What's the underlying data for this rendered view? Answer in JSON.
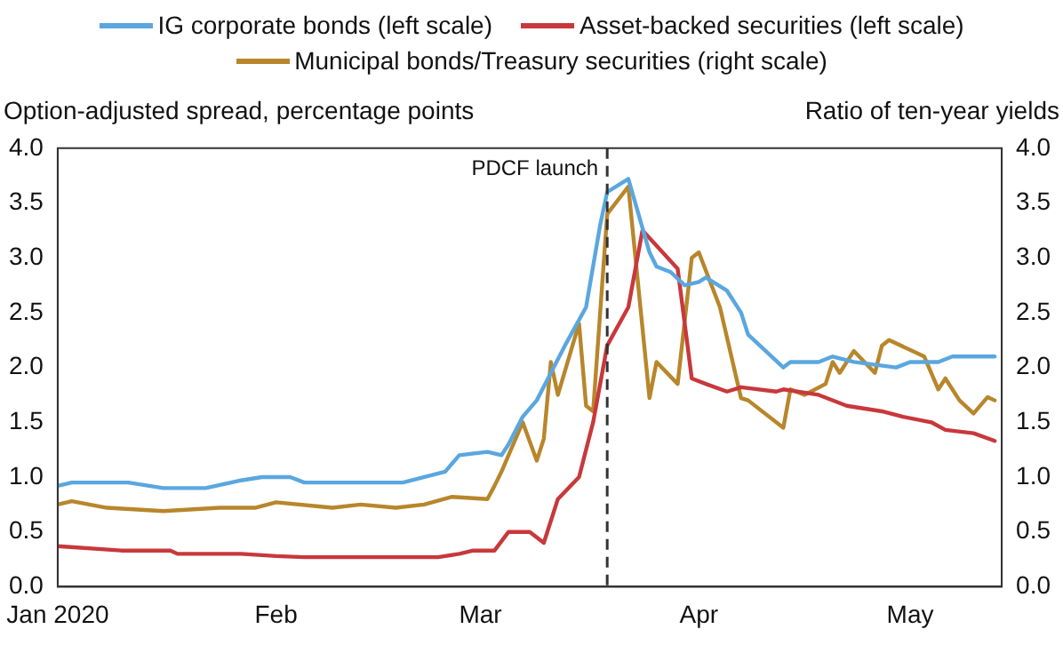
{
  "chart_data": {
    "type": "line",
    "ylabel": "Option-adjusted spread, percentage points",
    "y2label": "Ratio of ten-year yields",
    "xlim": [
      "2020-01-01",
      "2020-05-14"
    ],
    "xticks": [
      {
        "value": "2020-01-01",
        "label": "Jan 2020"
      },
      {
        "value": "2020-02-01",
        "label": "Feb"
      },
      {
        "value": "2020-03-01",
        "label": "Mar"
      },
      {
        "value": "2020-04-01",
        "label": "Apr"
      },
      {
        "value": "2020-05-01",
        "label": "May"
      }
    ],
    "ylim": [
      0,
      4
    ],
    "yticks": [
      {
        "value": 0,
        "label": "0.0"
      },
      0.5,
      {
        "value": 1,
        "label": "1.0"
      },
      1.5,
      {
        "value": 2,
        "label": "2.0"
      },
      2.5,
      {
        "value": 3,
        "label": "3.0"
      },
      3.5,
      {
        "value": 4,
        "label": "4.0"
      }
    ],
    "y2lim": [
      0,
      4
    ],
    "y2ticks": [
      {
        "value": 0,
        "label": "0.0"
      },
      0.5,
      {
        "value": 1,
        "label": "1.0"
      },
      1.5,
      {
        "value": 2,
        "label": "2.0"
      },
      2.5,
      {
        "value": 3,
        "label": "3.0"
      },
      3.5,
      {
        "value": 4,
        "label": "4.0"
      }
    ],
    "grid": false,
    "legend": "top",
    "marker": "none",
    "ref_lines": [
      {
        "axis": "x",
        "value": "2020-03-19",
        "label": "PDCF launch",
        "line_style": "dashed",
        "color": "#333333"
      }
    ],
    "series": [
      {
        "name": "IG corporate bonds (left scale)",
        "color": "#5aa7e0",
        "x": [
          "2020-01-01",
          "2020-01-03",
          "2020-01-11",
          "2020-01-13",
          "2020-01-16",
          "2020-01-22",
          "2020-01-27",
          "2020-01-30",
          "2020-02-03",
          "2020-02-05",
          "2020-02-19",
          "2020-02-25",
          "2020-02-27",
          "2020-03-02",
          "2020-03-04",
          "2020-03-05",
          "2020-03-07",
          "2020-03-09",
          "2020-03-11",
          "2020-03-13",
          "2020-03-16",
          "2020-03-18",
          "2020-03-19",
          "2020-03-22",
          "2020-03-25",
          "2020-03-26",
          "2020-03-28",
          "2020-03-30",
          "2020-04-01",
          "2020-04-02",
          "2020-04-05",
          "2020-04-07",
          "2020-04-08",
          "2020-04-13",
          "2020-04-14",
          "2020-04-18",
          "2020-04-20",
          "2020-04-23",
          "2020-04-29",
          "2020-05-01",
          "2020-05-05",
          "2020-05-07",
          "2020-05-13"
        ],
        "values": [
          0.92,
          0.95,
          0.95,
          0.93,
          0.9,
          0.9,
          0.97,
          1.0,
          1.0,
          0.95,
          0.95,
          1.05,
          1.2,
          1.23,
          1.2,
          1.3,
          1.55,
          1.7,
          1.95,
          2.2,
          2.55,
          3.3,
          3.6,
          3.72,
          3.05,
          2.92,
          2.87,
          2.75,
          2.78,
          2.82,
          2.7,
          2.5,
          2.3,
          2.0,
          2.05,
          2.05,
          2.1,
          2.05,
          2.0,
          2.05,
          2.05,
          2.1,
          2.1
        ]
      },
      {
        "name": "Asset-backed securities (left scale)",
        "color": "#c8383c",
        "x": [
          "2020-01-01",
          "2020-01-10",
          "2020-01-17",
          "2020-01-18",
          "2020-01-27",
          "2020-02-01",
          "2020-02-05",
          "2020-02-24",
          "2020-02-27",
          "2020-02-29",
          "2020-03-03",
          "2020-03-05",
          "2020-03-08",
          "2020-03-10",
          "2020-03-12",
          "2020-03-15",
          "2020-03-17",
          "2020-03-19",
          "2020-03-22",
          "2020-03-24",
          "2020-03-29",
          "2020-03-31",
          "2020-04-02",
          "2020-04-05",
          "2020-04-07",
          "2020-04-12",
          "2020-04-13",
          "2020-04-18",
          "2020-04-22",
          "2020-04-27",
          "2020-04-30",
          "2020-05-04",
          "2020-05-06",
          "2020-05-10",
          "2020-05-13"
        ],
        "values": [
          0.37,
          0.33,
          0.33,
          0.3,
          0.3,
          0.28,
          0.27,
          0.27,
          0.3,
          0.33,
          0.33,
          0.5,
          0.5,
          0.4,
          0.8,
          1.0,
          1.5,
          2.2,
          2.55,
          3.25,
          2.9,
          1.9,
          1.85,
          1.78,
          1.82,
          1.78,
          1.8,
          1.75,
          1.65,
          1.6,
          1.55,
          1.5,
          1.43,
          1.4,
          1.33
        ]
      },
      {
        "name": "Municipal bonds/Treasury securities (right scale)",
        "color": "#b8862b",
        "axis": "y2",
        "x": [
          "2020-01-01",
          "2020-01-03",
          "2020-01-08",
          "2020-01-16",
          "2020-01-24",
          "2020-01-29",
          "2020-02-01",
          "2020-02-09",
          "2020-02-13",
          "2020-02-18",
          "2020-02-22",
          "2020-02-26",
          "2020-03-02",
          "2020-03-03",
          "2020-03-04",
          "2020-03-07",
          "2020-03-09",
          "2020-03-10",
          "2020-03-11",
          "2020-03-12",
          "2020-03-15",
          "2020-03-16",
          "2020-03-17",
          "2020-03-19",
          "2020-03-22",
          "2020-03-25",
          "2020-03-26",
          "2020-03-29",
          "2020-03-31",
          "2020-04-01",
          "2020-04-04",
          "2020-04-07",
          "2020-04-08",
          "2020-04-13",
          "2020-04-14",
          "2020-04-16",
          "2020-04-19",
          "2020-04-20",
          "2020-04-21",
          "2020-04-23",
          "2020-04-26",
          "2020-04-27",
          "2020-04-28",
          "2020-05-03",
          "2020-05-05",
          "2020-05-06",
          "2020-05-08",
          "2020-05-10",
          "2020-05-12",
          "2020-05-13"
        ],
        "values": [
          0.75,
          0.78,
          0.72,
          0.69,
          0.72,
          0.72,
          0.77,
          0.72,
          0.75,
          0.72,
          0.75,
          0.82,
          0.8,
          0.92,
          1.05,
          1.5,
          1.15,
          1.35,
          2.05,
          1.75,
          2.4,
          1.65,
          1.6,
          3.4,
          3.65,
          1.72,
          2.05,
          1.85,
          3.0,
          3.05,
          2.55,
          1.72,
          1.7,
          1.45,
          1.8,
          1.75,
          1.85,
          2.05,
          1.95,
          2.15,
          1.95,
          2.2,
          2.25,
          2.1,
          1.8,
          1.9,
          1.7,
          1.58,
          1.73,
          1.7
        ]
      }
    ]
  }
}
